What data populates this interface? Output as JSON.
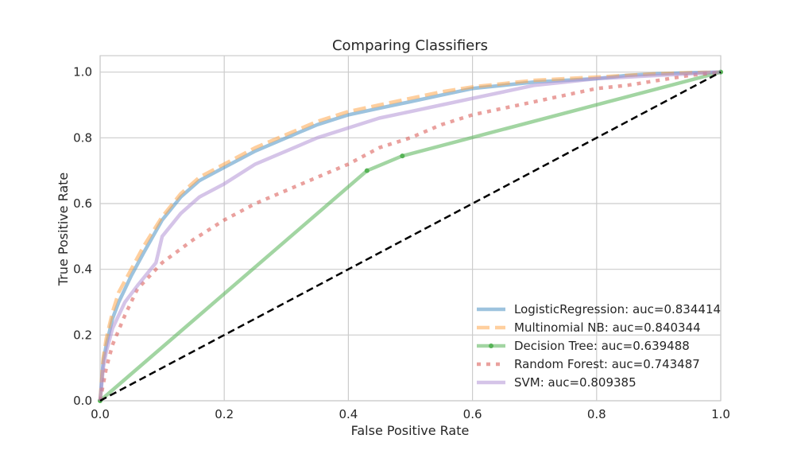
{
  "chart_data": {
    "type": "line",
    "title": "Comparing Classifiers",
    "xlabel": "False Positive Rate",
    "ylabel": "True Positive Rate",
    "xlim": [
      0,
      1
    ],
    "ylim": [
      0,
      1.05
    ],
    "xticks": [
      "0.0",
      "0.2",
      "0.4",
      "0.6",
      "0.8",
      "1.0"
    ],
    "yticks": [
      "0.0",
      "0.2",
      "0.4",
      "0.6",
      "0.8",
      "1.0"
    ],
    "grid": true,
    "legend_position": "lower-right",
    "reference_line": {
      "x": [
        0,
        1
      ],
      "y": [
        0,
        1
      ],
      "style": "dashed",
      "color": "#000000"
    },
    "series": [
      {
        "name": "LogisticRegression: auc=0.834414",
        "color": "#4c92c3",
        "style": "solid",
        "x": [
          0,
          0.005,
          0.01,
          0.02,
          0.03,
          0.05,
          0.07,
          0.1,
          0.13,
          0.16,
          0.2,
          0.25,
          0.3,
          0.35,
          0.4,
          0.45,
          0.5,
          0.55,
          0.6,
          0.65,
          0.7,
          0.75,
          0.8,
          0.85,
          0.9,
          0.95,
          1.0
        ],
        "y": [
          0,
          0.12,
          0.17,
          0.25,
          0.3,
          0.38,
          0.45,
          0.55,
          0.62,
          0.67,
          0.71,
          0.76,
          0.8,
          0.84,
          0.87,
          0.89,
          0.91,
          0.93,
          0.95,
          0.96,
          0.97,
          0.975,
          0.98,
          0.99,
          0.995,
          0.998,
          1.0
        ]
      },
      {
        "name": "Multinomial NB: auc=0.840344",
        "color": "#ffa74f",
        "style": "dashed",
        "x": [
          0,
          0.005,
          0.01,
          0.02,
          0.03,
          0.05,
          0.07,
          0.1,
          0.13,
          0.16,
          0.2,
          0.25,
          0.3,
          0.35,
          0.4,
          0.45,
          0.5,
          0.55,
          0.6,
          0.65,
          0.7,
          0.75,
          0.8,
          0.85,
          0.9,
          0.95,
          1.0
        ],
        "y": [
          0,
          0.13,
          0.19,
          0.27,
          0.33,
          0.4,
          0.47,
          0.56,
          0.63,
          0.68,
          0.72,
          0.77,
          0.81,
          0.85,
          0.88,
          0.9,
          0.92,
          0.94,
          0.955,
          0.965,
          0.975,
          0.98,
          0.985,
          0.99,
          0.995,
          0.998,
          1.0
        ]
      },
      {
        "name": "Decision Tree: auc=0.639488",
        "color": "#56b356",
        "style": "solid",
        "markers": true,
        "x": [
          0,
          0.43,
          0.487,
          1.0
        ],
        "y": [
          0,
          0.7,
          0.745,
          1.0
        ]
      },
      {
        "name": "Random Forest: auc=0.743487",
        "color": "#d9534f",
        "style": "dotted",
        "x": [
          0,
          0.01,
          0.02,
          0.04,
          0.06,
          0.1,
          0.15,
          0.2,
          0.25,
          0.3,
          0.35,
          0.4,
          0.45,
          0.5,
          0.55,
          0.6,
          0.65,
          0.7,
          0.75,
          0.8,
          0.85,
          0.9,
          0.95,
          1.0
        ],
        "y": [
          0,
          0.1,
          0.17,
          0.26,
          0.34,
          0.42,
          0.49,
          0.55,
          0.6,
          0.64,
          0.68,
          0.72,
          0.77,
          0.8,
          0.84,
          0.87,
          0.89,
          0.91,
          0.93,
          0.95,
          0.96,
          0.975,
          0.99,
          1.0
        ]
      },
      {
        "name": "SVM: auc=0.809385",
        "color": "#b394d6",
        "style": "solid",
        "x": [
          0,
          0.005,
          0.01,
          0.02,
          0.04,
          0.06,
          0.09,
          0.1,
          0.13,
          0.16,
          0.2,
          0.25,
          0.3,
          0.35,
          0.4,
          0.45,
          0.5,
          0.55,
          0.6,
          0.65,
          0.7,
          0.75,
          0.8,
          0.85,
          0.9,
          0.95,
          1.0
        ],
        "y": [
          0,
          0.1,
          0.15,
          0.22,
          0.3,
          0.35,
          0.42,
          0.5,
          0.57,
          0.62,
          0.66,
          0.72,
          0.76,
          0.8,
          0.83,
          0.86,
          0.88,
          0.9,
          0.92,
          0.94,
          0.96,
          0.97,
          0.98,
          0.985,
          0.99,
          0.995,
          1.0
        ]
      }
    ]
  }
}
